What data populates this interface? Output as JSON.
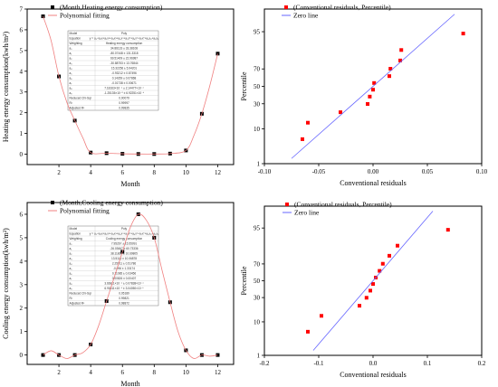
{
  "chart_data": [
    {
      "id": "heating-fit",
      "type": "scatter",
      "xlabel": "Month",
      "ylabel": "Heating energy consumption(kwh/m²)",
      "xlim": [
        0,
        13
      ],
      "ylim": [
        -0.5,
        7
      ],
      "xticks": [
        2,
        4,
        6,
        8,
        10,
        12
      ],
      "yticks": [
        0,
        1,
        2,
        3,
        4,
        5,
        6,
        7
      ],
      "grid": false,
      "legend_position": "top-left",
      "series": [
        {
          "name": "(Month,Heating energy consumption)",
          "style": "markers",
          "color": "#000000",
          "x": [
            1,
            2,
            3,
            4,
            5,
            6,
            7,
            8,
            9,
            10,
            11,
            12
          ],
          "y": [
            6.65,
            3.75,
            1.62,
            0.08,
            0.05,
            0.02,
            0.01,
            0.01,
            0.03,
            0.18,
            1.95,
            4.85
          ]
        },
        {
          "name": "Polynomial fitting",
          "style": "line",
          "color": "#f08080",
          "x": [
            1,
            1.5,
            2,
            2.5,
            3,
            3.5,
            4,
            5,
            6,
            7,
            8,
            9,
            10,
            10.5,
            11,
            11.5,
            12
          ],
          "y": [
            6.65,
            5.5,
            3.75,
            2.5,
            1.62,
            0.8,
            0.08,
            0.05,
            0.02,
            0.01,
            0.01,
            0.03,
            0.18,
            0.9,
            1.95,
            3.3,
            4.85
          ]
        }
      ],
      "fit_table": {
        "header": [
          "Model",
          "Poly"
        ],
        "rows": [
          [
            "Equation",
            "y = a₀+a₁x+a₂x²+a₃x³+a₄x⁴+a₅x⁵+a₆x⁶+a₇x⁷+a₈x₈+a₉x₉"
          ],
          [
            "Weighting",
            "Heating energy consumption"
          ],
          [
            "a₀",
            "34.86133 ± 33.38108"
          ],
          [
            "a₁",
            "-80.07448 ± 131.3318"
          ],
          [
            "a₂",
            "69.51409 ± 22.96987"
          ],
          [
            "a₃",
            "-30.88753 ± 13.76844"
          ],
          [
            "a₄",
            "15.32256 ± 5.94201"
          ],
          [
            "a₅",
            "-0.93212 ± 0.87496"
          ],
          [
            "a₆",
            "0.14269 ± 0.07868"
          ],
          [
            "a₇",
            "-0.01738 ± 0.00671"
          ],
          [
            "a₈",
            "7.18163×10⁻⁴ ± 2.14477×10⁻⁴"
          ],
          [
            "a₉",
            "-1.25135×10⁻⁵ ± 6.92251×10⁻⁶"
          ],
          [
            "Reduced Chi-Sqr",
            "0.00079"
          ],
          [
            "R²",
            "0.99997"
          ],
          [
            "Adjusted R²",
            "0.99835"
          ]
        ]
      }
    },
    {
      "id": "heating-residuals",
      "type": "scatter",
      "xlabel": "Conventional residuals",
      "ylabel": "Percentile",
      "xlim": [
        -0.1,
        0.1
      ],
      "ylim": [
        1,
        99
      ],
      "xticks": [
        -0.1,
        -0.05,
        0.0,
        0.05,
        0.1
      ],
      "xtick_labels": [
        "-0.10",
        "-0.05",
        "0.00",
        "0.05",
        "0.10"
      ],
      "yticks": [
        1,
        10,
        30,
        50,
        70,
        95
      ],
      "grid": false,
      "legend_position": "top-left",
      "series": [
        {
          "name": "(Conventional residuals, Percentile)",
          "style": "markers",
          "color": "#ff0000",
          "x": [
            -0.065,
            -0.06,
            -0.03,
            -0.005,
            -0.003,
            0.0,
            0.001,
            0.015,
            0.016,
            0.025,
            0.026,
            0.083
          ],
          "y": [
            5.6,
            13.7,
            21.8,
            29.8,
            37.9,
            46.0,
            54.0,
            62.1,
            70.2,
            78.2,
            86.3,
            94.4
          ]
        },
        {
          "name": "Zero line",
          "style": "line",
          "color": "#6666ff",
          "x": [
            -0.075,
            0.075
          ],
          "y": [
            1.5,
            98.5
          ]
        }
      ]
    },
    {
      "id": "cooling-fit",
      "type": "scatter",
      "xlabel": "Month",
      "ylabel": "Cooling energy consumption(kwh/m²)",
      "xlim": [
        0,
        13
      ],
      "ylim": [
        -0.4,
        6.5
      ],
      "xticks": [
        2,
        4,
        6,
        8,
        10,
        12
      ],
      "yticks": [
        0,
        1,
        2,
        3,
        4,
        5,
        6
      ],
      "grid": false,
      "legend_position": "top-left",
      "series": [
        {
          "name": "(Month,Cooling energy consumption)",
          "style": "markers",
          "color": "#000000",
          "x": [
            1,
            2,
            3,
            4,
            5,
            6,
            7,
            8,
            9,
            10,
            11,
            12
          ],
          "y": [
            0.0,
            0.0,
            0.0,
            0.45,
            2.3,
            4.4,
            6.0,
            5.0,
            2.25,
            0.2,
            0.0,
            0.0
          ]
        },
        {
          "name": "Polynomial fitting",
          "style": "line",
          "color": "#f08080",
          "x": [
            1,
            1.5,
            2,
            2.5,
            3,
            3.5,
            4,
            4.5,
            5,
            5.5,
            6,
            6.5,
            7,
            7.5,
            8,
            8.5,
            9,
            9.5,
            10,
            10.5,
            11,
            11.5,
            12
          ],
          "y": [
            0.0,
            0.18,
            0.0,
            -0.15,
            0.0,
            0.1,
            0.45,
            1.25,
            2.3,
            3.35,
            4.4,
            5.45,
            6.0,
            5.75,
            5.0,
            3.6,
            2.25,
            1.0,
            0.2,
            -0.15,
            0.0,
            -0.05,
            0.0
          ]
        }
      ],
      "fit_table": {
        "header": [
          "Model",
          "Poly"
        ],
        "rows": [
          [
            "Equation",
            "y = a₀+a₁x+a₂x²+a₃x³+a₄x⁴+a₅x⁵+a₆x⁶+a₇x⁷+a₈x₈+a₉x₉"
          ],
          [
            "Weighting",
            "Cooling energy consumption"
          ],
          [
            "a₀",
            "7.95267 ± 15.55091"
          ],
          [
            "a₁",
            "-26.03667 ± 60.73336"
          ],
          [
            "a₂",
            "38.11864 ± 10.69805"
          ],
          [
            "a₃",
            "13.5116 ± 10.06878"
          ],
          [
            "a₄",
            "2.25911 ± 0.51786"
          ],
          [
            "a₅",
            "-0.096 ± 1.33174"
          ],
          [
            "a₆",
            "0.11085 ± 0.03456"
          ],
          [
            "a₇",
            "0.00826 ± 0.00407"
          ],
          [
            "a₈",
            "3.66811×10⁻⁴ ± 0.07838×10⁻⁴"
          ],
          [
            "a₉",
            "6.90611×10⁻⁶ ± 3.04050×10⁻⁶"
          ],
          [
            "Reduced Chi-Sqr",
            "0.05189"
          ],
          [
            "R²",
            "0.99821"
          ],
          [
            "Adjusted R²",
            "0.98872"
          ]
        ]
      }
    },
    {
      "id": "cooling-residuals",
      "type": "scatter",
      "xlabel": "Conventional residuals",
      "ylabel": "Percentile",
      "xlim": [
        -0.2,
        0.2
      ],
      "ylim": [
        1,
        99
      ],
      "xticks": [
        -0.2,
        -0.1,
        0.0,
        0.1,
        0.2
      ],
      "xtick_labels": [
        "-0.2",
        "-0.1",
        "0.0",
        "0.1",
        "0.2"
      ],
      "yticks": [
        1,
        10,
        30,
        50,
        70,
        95
      ],
      "grid": false,
      "legend_position": "top-left",
      "series": [
        {
          "name": "(Conventional residuals, Percentile)",
          "style": "markers",
          "color": "#ff0000",
          "x": [
            -0.12,
            -0.095,
            -0.025,
            -0.012,
            -0.005,
            0.0,
            0.005,
            0.012,
            0.018,
            0.03,
            0.045,
            0.138
          ],
          "y": [
            5.6,
            13.7,
            21.8,
            29.8,
            37.9,
            46.0,
            54.0,
            62.1,
            70.2,
            78.2,
            86.3,
            94.4
          ]
        },
        {
          "name": "Zero line",
          "style": "line",
          "color": "#6666ff",
          "x": [
            -0.11,
            0.11
          ],
          "y": [
            1.5,
            98.5
          ]
        }
      ]
    }
  ]
}
